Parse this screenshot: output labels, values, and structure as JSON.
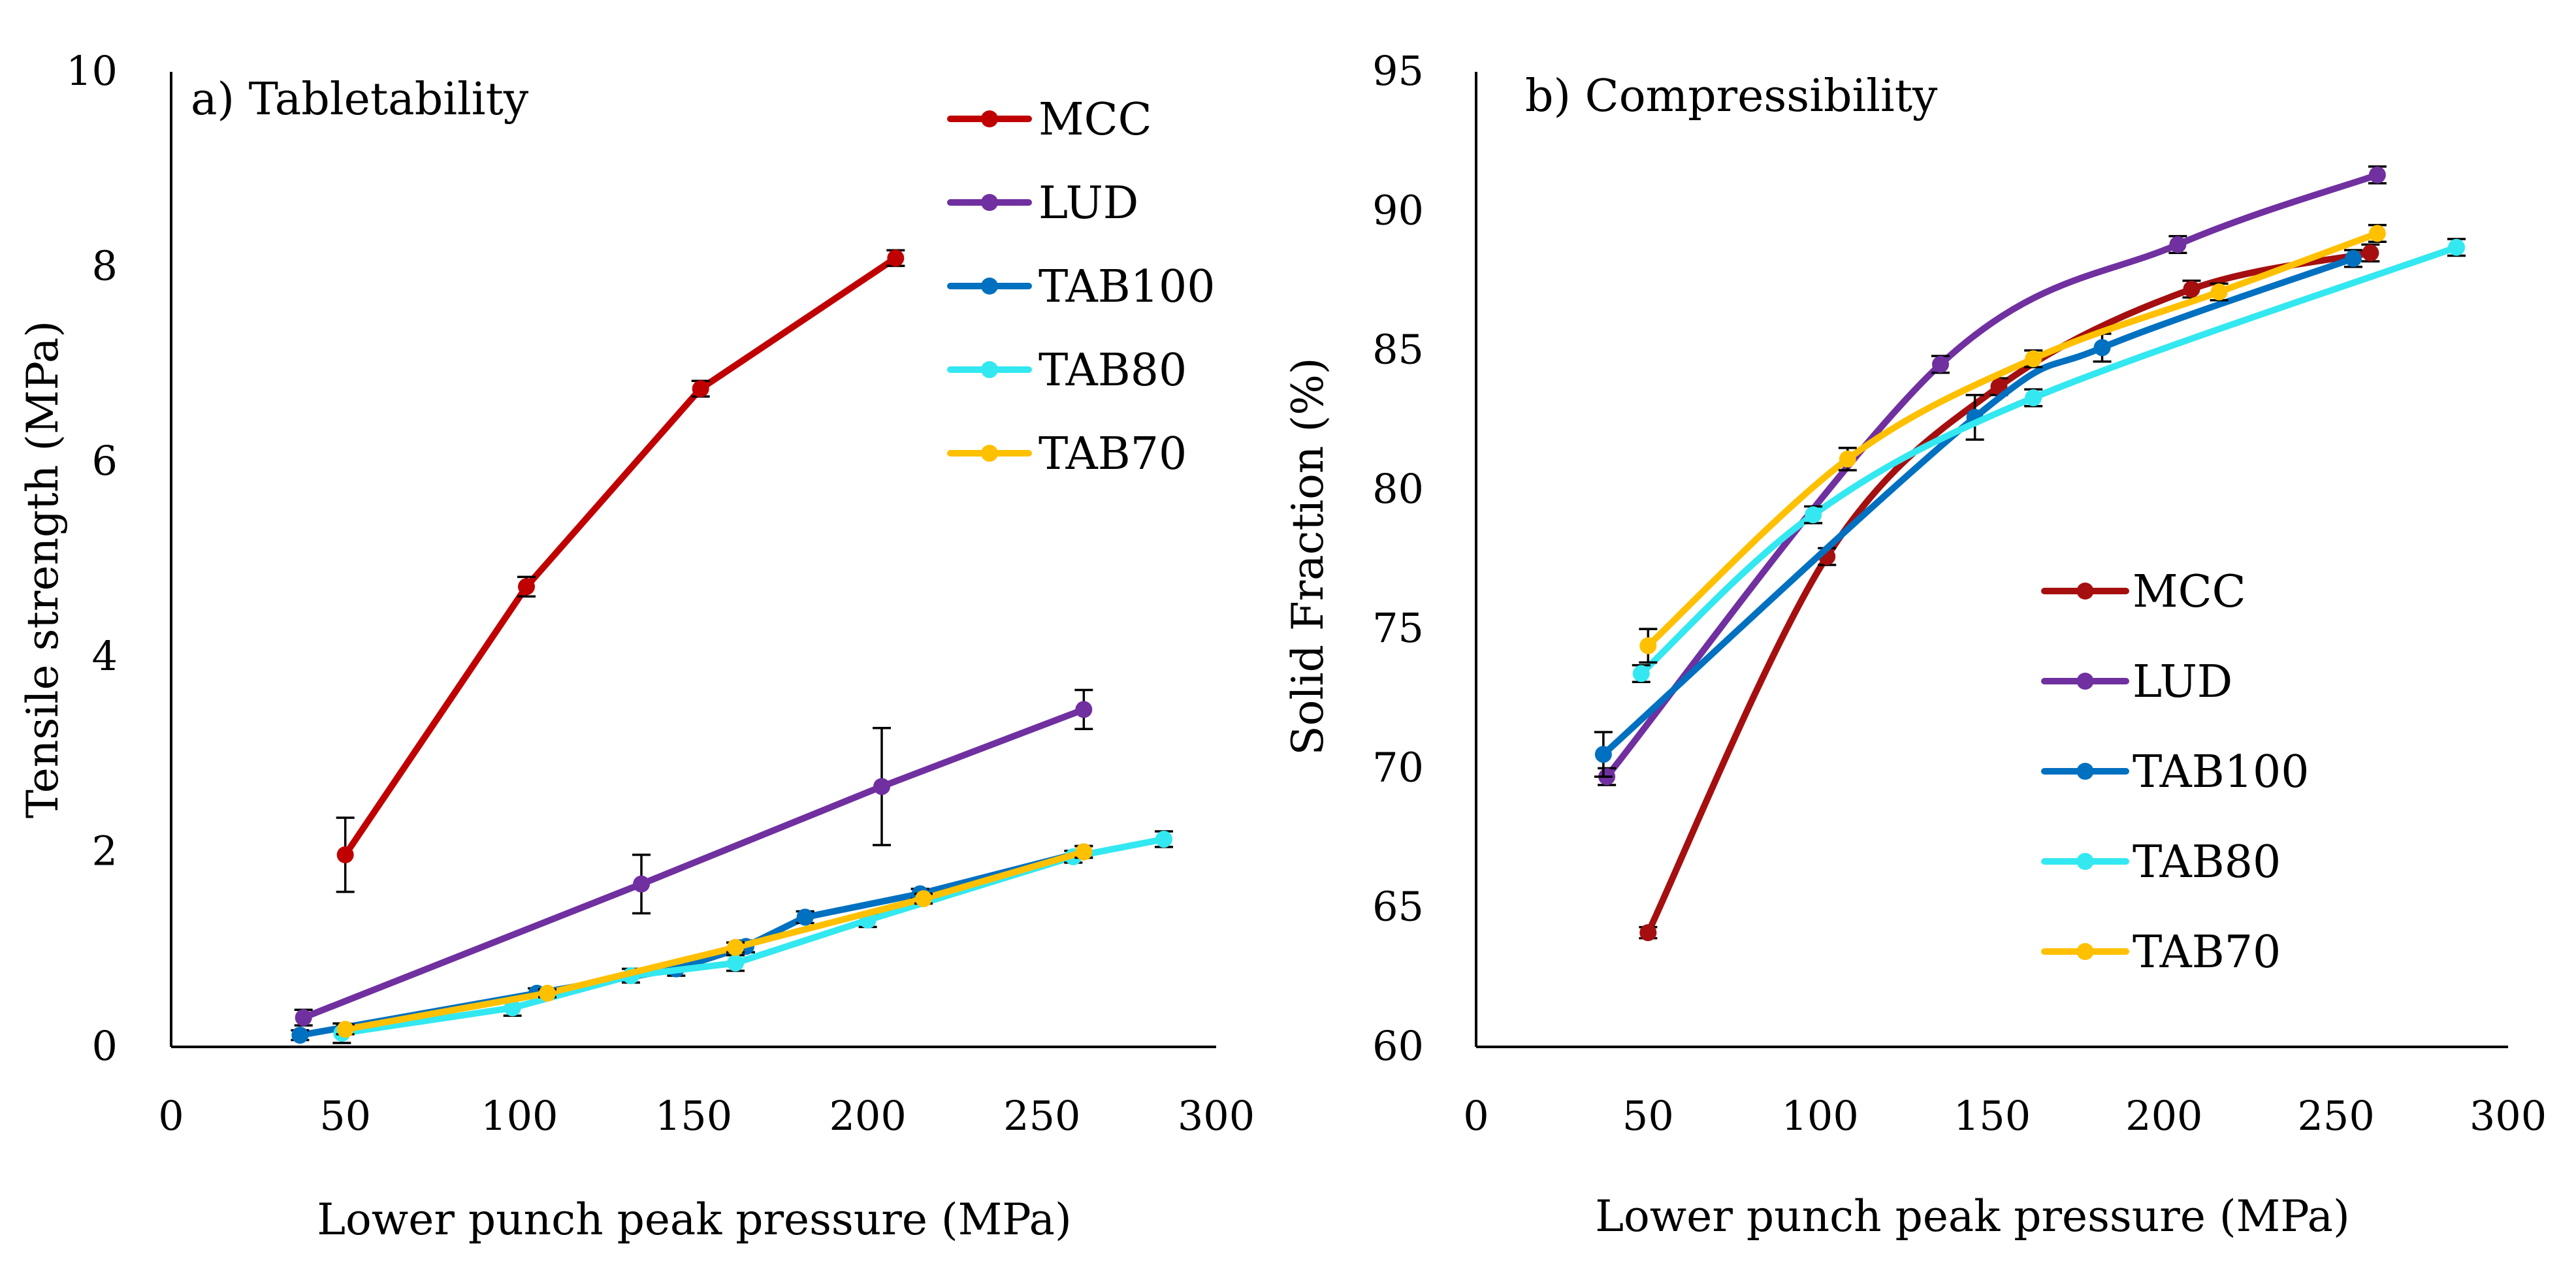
{
  "chart_data": [
    {
      "type": "line",
      "title": "a) Tabletability",
      "xlabel": "Lower punch peak pressure (MPa)",
      "ylabel": "Tensile strength (MPa)",
      "xlim": [
        0,
        300
      ],
      "ylim": [
        0,
        10
      ],
      "xticks": [
        "0",
        "50",
        "100",
        "150",
        "200",
        "250",
        "300"
      ],
      "yticks": [
        "0",
        "2",
        "4",
        "6",
        "8",
        "10"
      ],
      "legend_position": "top-right",
      "smooth": false,
      "series": [
        {
          "name": "MCC",
          "color": "#C00000",
          "x": [
            50,
            102,
            152,
            208
          ],
          "y": [
            1.97,
            4.72,
            6.75,
            8.09
          ],
          "err": [
            0.38,
            0.1,
            0.08,
            0.08
          ]
        },
        {
          "name": "LUD",
          "color": "#7030A0",
          "x": [
            38,
            135,
            204,
            262
          ],
          "y": [
            0.3,
            1.67,
            2.67,
            3.46
          ],
          "err": [
            0.08,
            0.3,
            0.6,
            0.2
          ]
        },
        {
          "name": "TAB100",
          "color": "#0070C0",
          "x": [
            37,
            105,
            145,
            165,
            182,
            215,
            262
          ],
          "y": [
            0.12,
            0.55,
            0.8,
            1.03,
            1.33,
            1.57,
            2.0
          ],
          "err": [
            0.05,
            0.05,
            0.07,
            0.06,
            0.06,
            0.05,
            0.06
          ]
        },
        {
          "name": "TAB80",
          "color": "#33E8F0",
          "x": [
            49,
            98,
            132,
            162,
            200,
            259,
            285
          ],
          "y": [
            0.14,
            0.4,
            0.73,
            0.86,
            1.3,
            1.95,
            2.13
          ],
          "err": [
            0.1,
            0.08,
            0.07,
            0.08,
            0.07,
            0.06,
            0.08
          ]
        },
        {
          "name": "TAB70",
          "color": "#FFC000",
          "x": [
            50,
            108,
            162,
            216,
            262
          ],
          "y": [
            0.18,
            0.55,
            1.02,
            1.52,
            2.0
          ],
          "err": [
            0.05,
            0.04,
            0.05,
            0.05,
            0.06
          ]
        }
      ]
    },
    {
      "type": "line",
      "title": "b) Compressibility",
      "xlabel": "Lower punch peak pressure (MPa)",
      "ylabel": "Solid Fraction (%)",
      "xlim": [
        0,
        300
      ],
      "ylim": [
        60,
        95
      ],
      "xticks": [
        "0",
        "50",
        "100",
        "150",
        "200",
        "250",
        "300"
      ],
      "yticks": [
        "60",
        "65",
        "70",
        "75",
        "80",
        "85",
        "90",
        "95"
      ],
      "legend_position": "center-right",
      "smooth": true,
      "series": [
        {
          "name": "MCC",
          "color": "#A50F0F",
          "x": [
            50,
            102,
            152,
            208,
            260
          ],
          "y": [
            64.1,
            77.6,
            83.7,
            87.2,
            88.5
          ],
          "err": [
            0.2,
            0.3,
            0.3,
            0.3,
            0.3
          ]
        },
        {
          "name": "LUD",
          "color": "#7030A0",
          "x": [
            38,
            135,
            204,
            262
          ],
          "y": [
            69.7,
            84.5,
            88.8,
            91.3
          ],
          "err": [
            0.3,
            0.3,
            0.3,
            0.3
          ]
        },
        {
          "name": "TAB100",
          "color": "#0070C0",
          "x": [
            37,
            145,
            182,
            255
          ],
          "y": [
            70.5,
            82.6,
            85.1,
            88.3
          ],
          "err": [
            0.8,
            0.8,
            0.5,
            0.3
          ]
        },
        {
          "name": "TAB80",
          "color": "#33E8F0",
          "x": [
            48,
            98,
            162,
            285
          ],
          "y": [
            73.4,
            79.1,
            83.3,
            88.7
          ],
          "err": [
            0.3,
            0.3,
            0.3,
            0.3
          ]
        },
        {
          "name": "TAB70",
          "color": "#FFC000",
          "x": [
            50,
            108,
            162,
            216,
            262
          ],
          "y": [
            74.4,
            81.1,
            84.7,
            87.1,
            89.2
          ],
          "err": [
            0.6,
            0.4,
            0.3,
            0.3,
            0.3
          ]
        }
      ]
    }
  ]
}
